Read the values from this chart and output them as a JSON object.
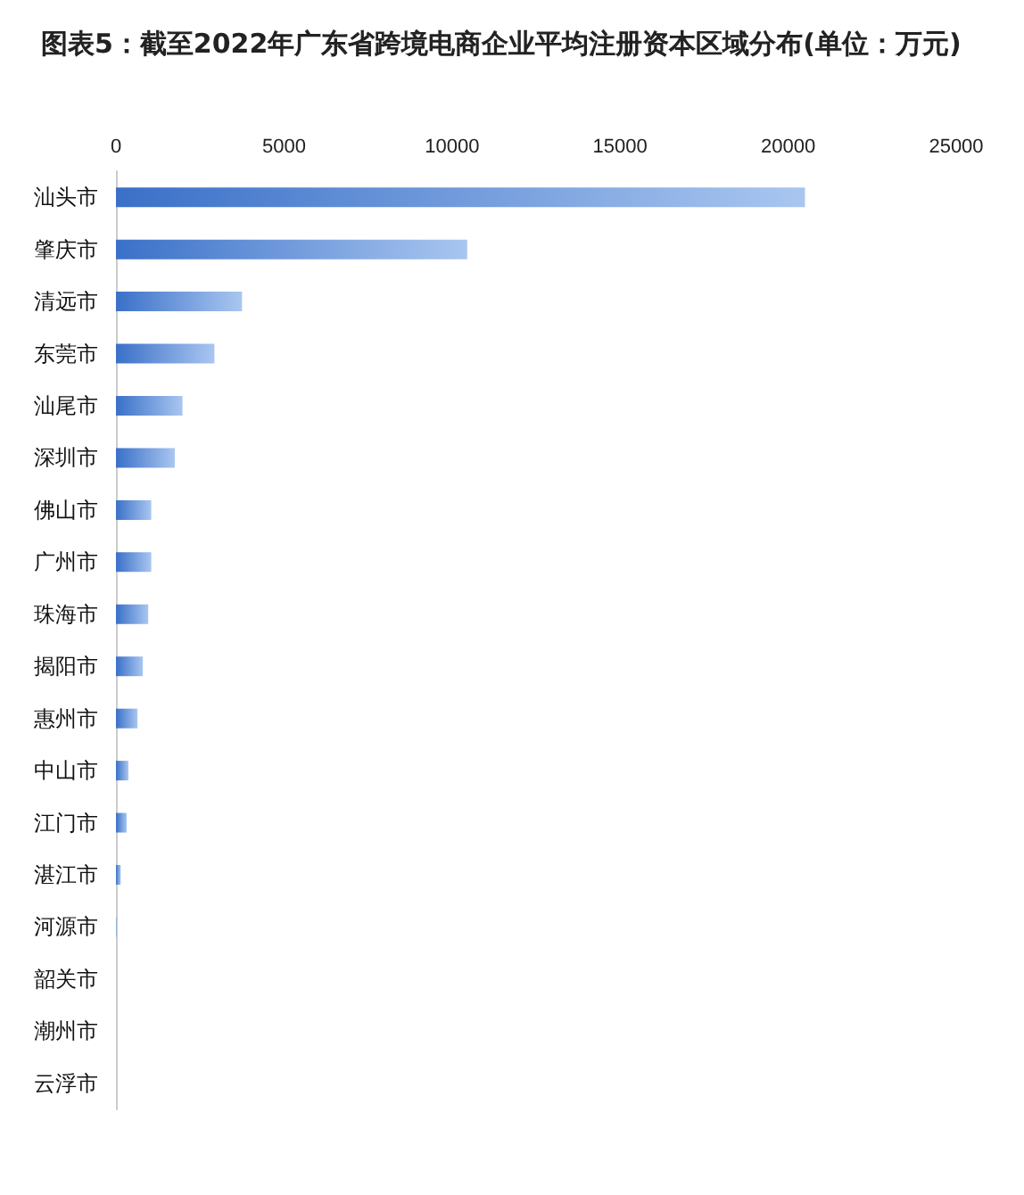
{
  "chart_data": {
    "type": "bar",
    "orientation": "horizontal",
    "title": "图表5：截至2022年广东省跨境电商企业平均注册资本区域分布(单位：万元)",
    "categories": [
      "汕头市",
      "肇庆市",
      "清远市",
      "东莞市",
      "汕尾市",
      "深圳市",
      "佛山市",
      "广州市",
      "珠海市",
      "揭阳市",
      "惠州市",
      "中山市",
      "江门市",
      "湛江市",
      "河源市",
      "韶关市",
      "潮州市",
      "云浮市"
    ],
    "values": [
      20500,
      10450,
      3750,
      2930,
      1980,
      1750,
      1050,
      1050,
      960,
      800,
      640,
      370,
      320,
      140,
      20,
      0,
      0,
      0
    ],
    "color": "#3a70c8",
    "xlim": [
      0,
      25000
    ],
    "xticks": [
      0,
      5000,
      10000,
      15000,
      20000,
      25000
    ],
    "grid": false
  }
}
